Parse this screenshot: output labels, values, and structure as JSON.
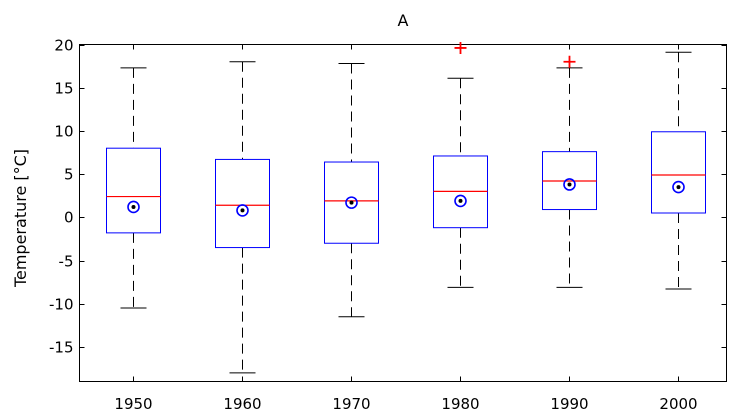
{
  "chart_data": {
    "type": "boxplot",
    "title": "A",
    "xlabel": "",
    "ylabel": "Temperature [°C]",
    "ylim": [
      -19,
      20
    ],
    "yticks": [
      -15,
      -10,
      -5,
      0,
      5,
      10,
      15,
      20
    ],
    "categories": [
      "1950",
      "1960",
      "1970",
      "1980",
      "1990",
      "2000"
    ],
    "boxes": [
      {
        "whisker_low": -10.5,
        "q1": -1.8,
        "median": 2.4,
        "q3": 8.0,
        "whisker_high": 17.3,
        "mean": 1.2,
        "outliers": []
      },
      {
        "whisker_low": -18.0,
        "q1": -3.5,
        "median": 1.4,
        "q3": 6.7,
        "whisker_high": 18.0,
        "mean": 0.8,
        "outliers": []
      },
      {
        "whisker_low": -11.5,
        "q1": -3.0,
        "median": 1.9,
        "q3": 6.4,
        "whisker_high": 17.8,
        "mean": 1.7,
        "outliers": []
      },
      {
        "whisker_low": -8.1,
        "q1": -1.2,
        "median": 3.0,
        "q3": 7.1,
        "whisker_high": 16.1,
        "mean": 1.9,
        "outliers": [
          19.6
        ]
      },
      {
        "whisker_low": -8.1,
        "q1": 0.9,
        "median": 4.2,
        "q3": 7.6,
        "whisker_high": 17.3,
        "mean": 3.8,
        "outliers": [
          18.0
        ]
      },
      {
        "whisker_low": -8.3,
        "q1": 0.5,
        "median": 4.9,
        "q3": 9.9,
        "whisker_high": 19.1,
        "mean": 3.5,
        "outliers": []
      }
    ],
    "grid": false,
    "colors": {
      "box": "#0000ff",
      "median": "#ff0000",
      "whisker": "#000000",
      "outlier": "#ff0000",
      "mean_marker": "#0000ff"
    }
  }
}
